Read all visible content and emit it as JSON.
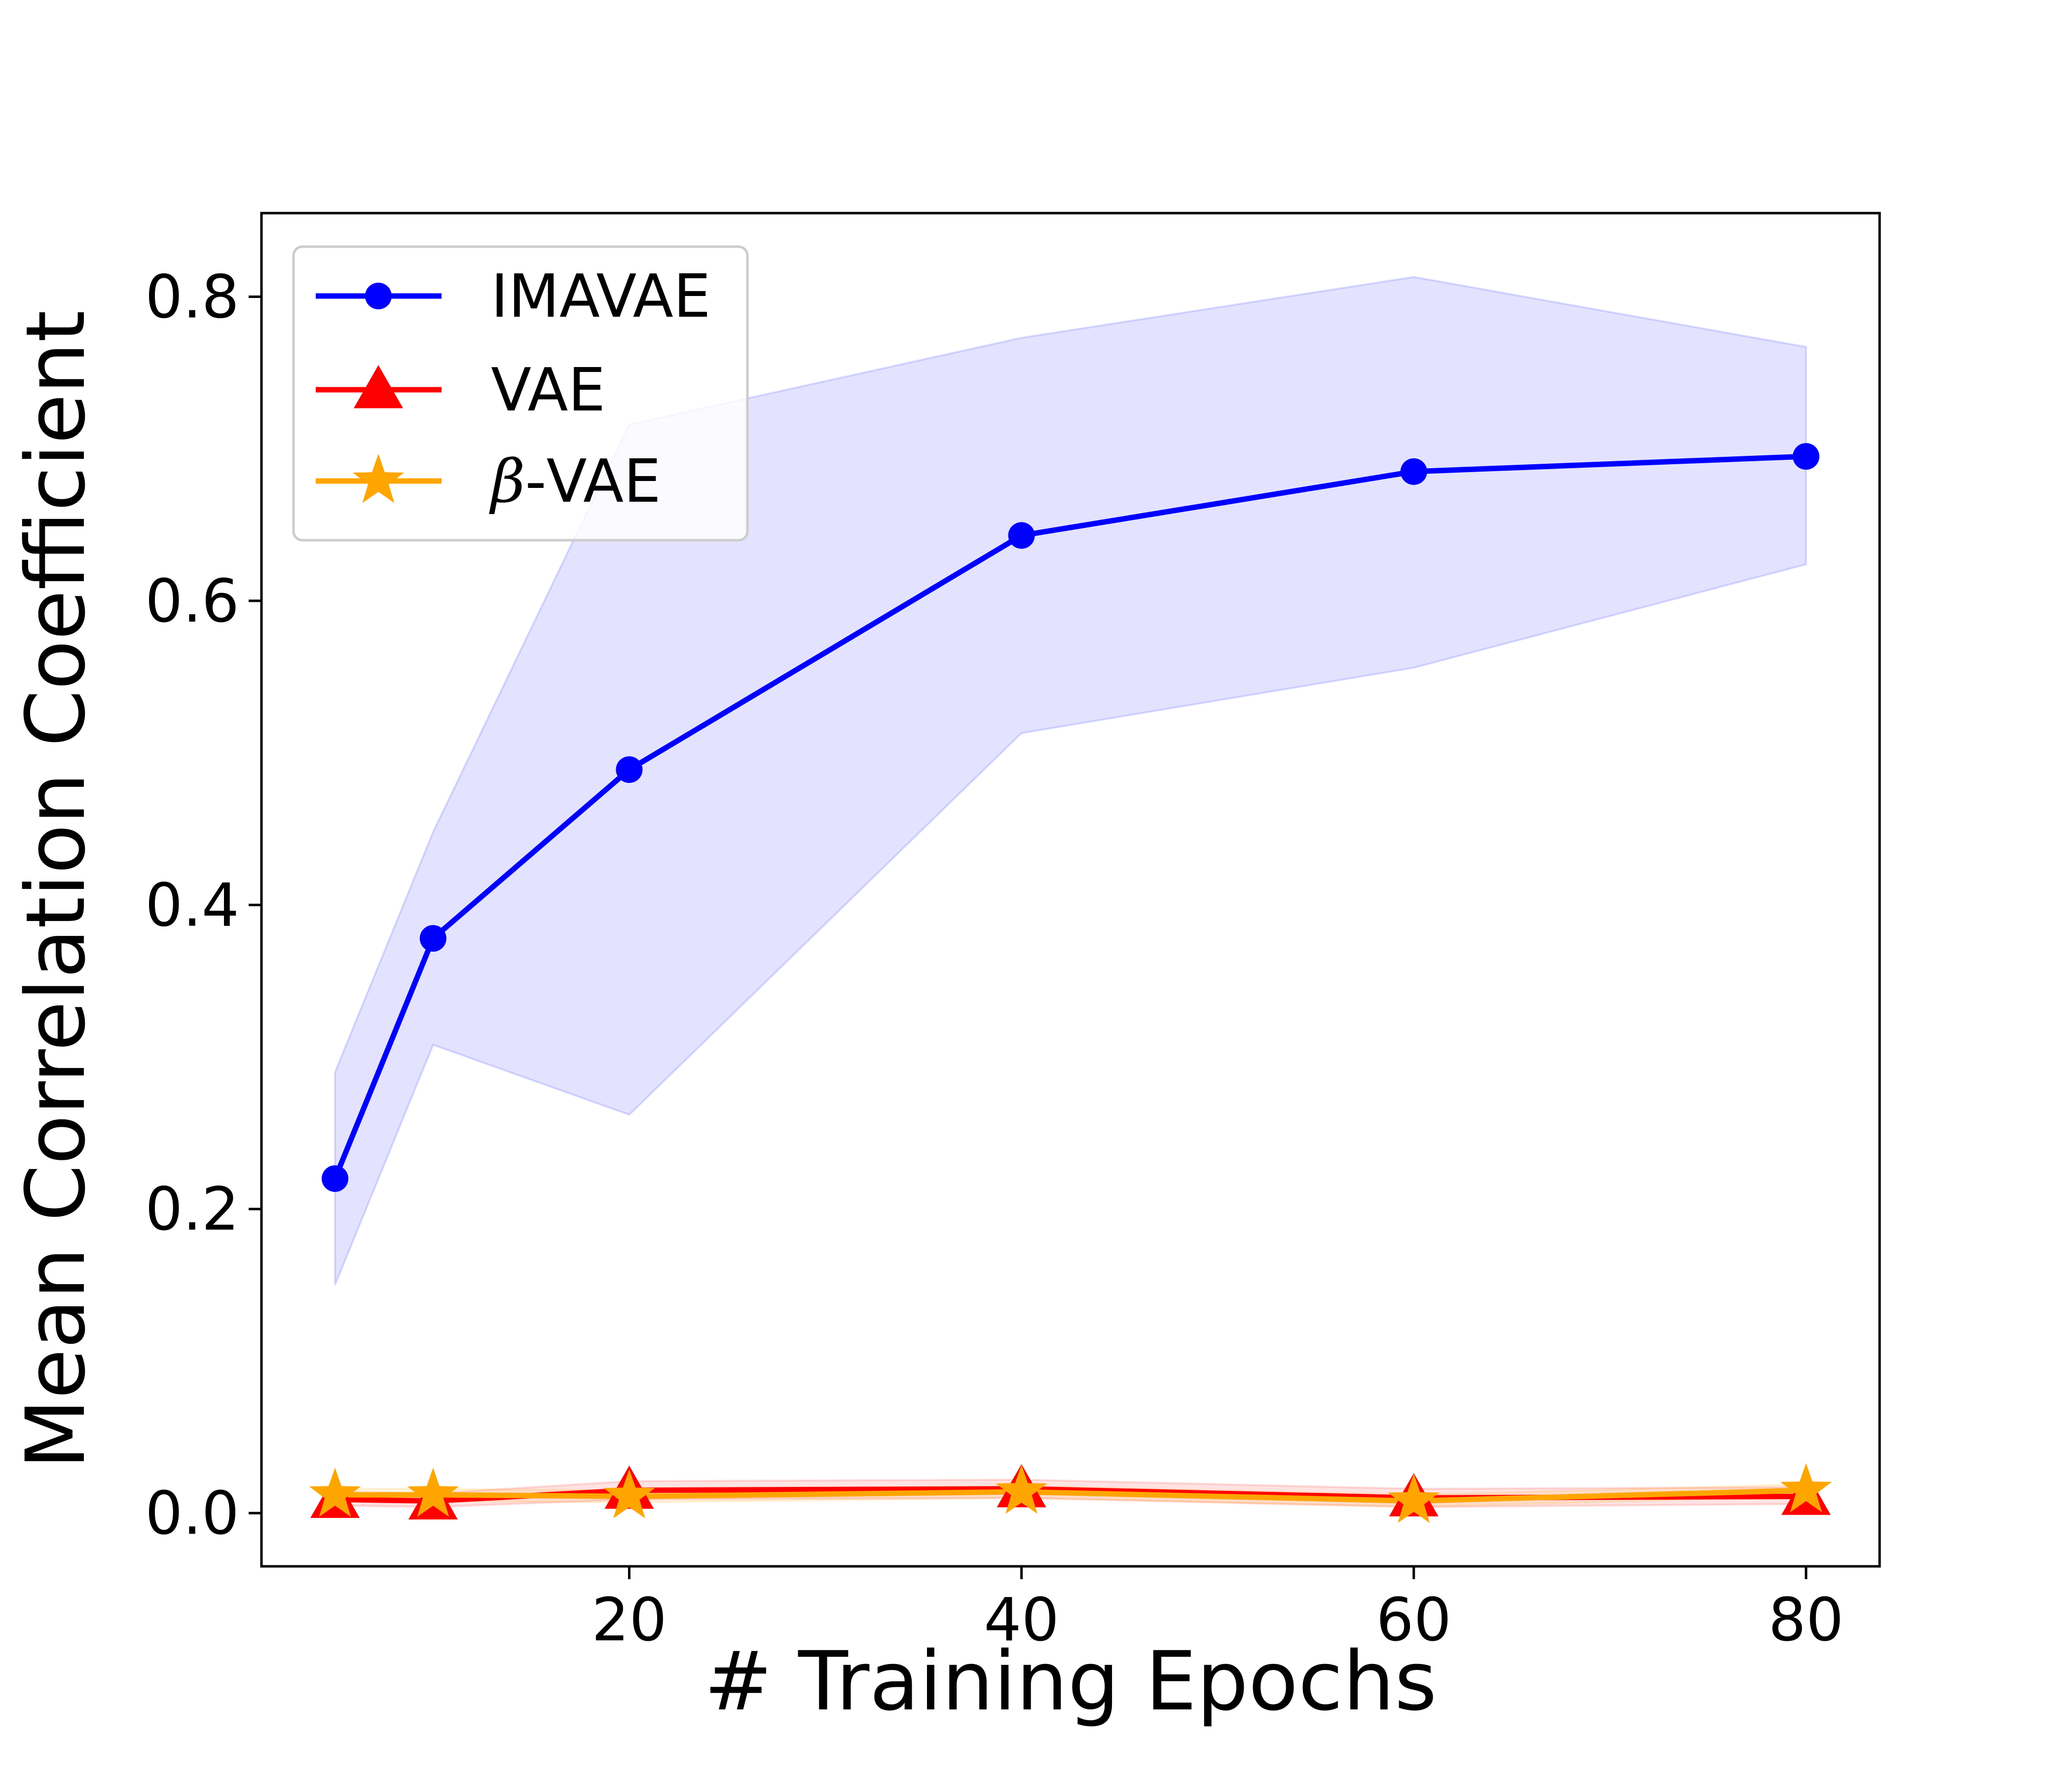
{
  "chart_data": {
    "type": "line",
    "xlabel": "# Training Epochs",
    "ylabel": "Mean Correlation Coefficient",
    "x": [
      5,
      10,
      20,
      40,
      60,
      80
    ],
    "xlim": [
      1.25,
      83.75
    ],
    "ylim": [
      -0.035,
      0.855
    ],
    "xticks": [
      20,
      40,
      60,
      80
    ],
    "xtick_labels": [
      "20",
      "40",
      "60",
      "80"
    ],
    "yticks": [
      0.0,
      0.2,
      0.4,
      0.6,
      0.8
    ],
    "ytick_labels": [
      "0.0",
      "0.2",
      "0.4",
      "0.6",
      "0.8"
    ],
    "grid": false,
    "legend_position": "top-left",
    "series": [
      {
        "name": "IMAVAE",
        "color": "#0000ff",
        "marker": "circle",
        "values": [
          0.22,
          0.378,
          0.489,
          0.643,
          0.685,
          0.695
        ],
        "lower": [
          0.15,
          0.308,
          0.262,
          0.513,
          0.556,
          0.624
        ],
        "upper": [
          0.29,
          0.448,
          0.716,
          0.773,
          0.813,
          0.767
        ]
      },
      {
        "name": "VAE",
        "color": "#ff0000",
        "marker": "triangle",
        "values": [
          0.009,
          0.008,
          0.015,
          0.016,
          0.01,
          0.011
        ],
        "lower": [
          0.005,
          0.004,
          0.009,
          0.01,
          0.004,
          0.006
        ],
        "upper": [
          0.014,
          0.013,
          0.021,
          0.022,
          0.016,
          0.017
        ]
      },
      {
        "name_prefix": "β",
        "name_suffix": "-VAE",
        "color": "#ffa500",
        "marker": "star",
        "values": [
          0.012,
          0.012,
          0.011,
          0.014,
          0.008,
          0.015
        ],
        "lower": [
          0.008,
          0.008,
          0.007,
          0.01,
          0.004,
          0.011
        ],
        "upper": [
          0.016,
          0.016,
          0.015,
          0.018,
          0.012,
          0.019
        ]
      }
    ]
  }
}
